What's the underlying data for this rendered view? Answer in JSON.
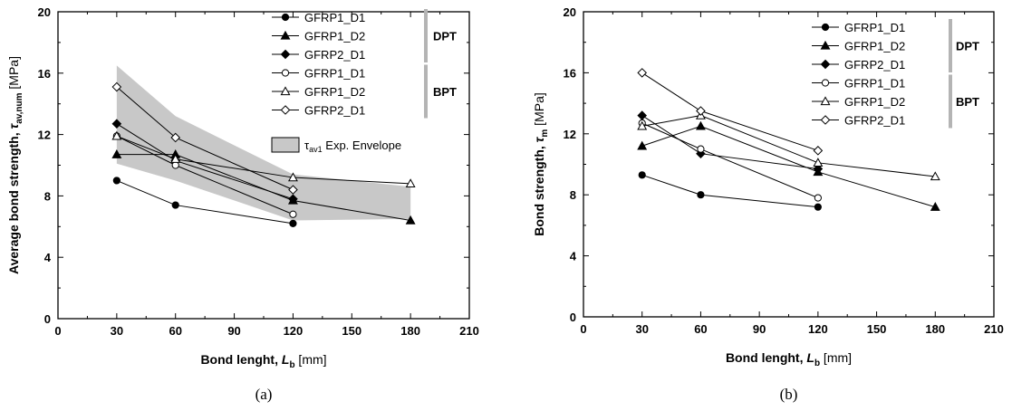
{
  "chart_data": [
    {
      "type": "line",
      "panel_label": "(a)",
      "xlabel": {
        "pre": "Bond lenght, ",
        "sym": "L",
        "sub": "b",
        "post": " [mm]"
      },
      "ylabel": {
        "pre": "Average bond strength, ",
        "sym": "τ",
        "sub": "av,num",
        "post": " [MPa]"
      },
      "xlim": [
        0,
        210
      ],
      "ylim": [
        0,
        20
      ],
      "xticks": [
        0,
        30,
        60,
        90,
        120,
        150,
        180,
        210
      ],
      "yticks": [
        0,
        4,
        8,
        12,
        16,
        20
      ],
      "envelope": {
        "label_sym": "τ",
        "label_sub": "av1",
        "label_post": " Exp. Envelope",
        "color": "#c8c8c8",
        "x": [
          30,
          60,
          120,
          180
        ],
        "upper": [
          16.5,
          13.2,
          9.4,
          8.6
        ],
        "lower": [
          10.1,
          9.0,
          6.4,
          6.5
        ]
      },
      "groups": [
        {
          "label": "DPT",
          "series_from": 0,
          "series_to": 2
        },
        {
          "label": "BPT",
          "series_from": 3,
          "series_to": 5
        }
      ],
      "series": [
        {
          "name": "GFRP1_D1",
          "marker": "circle",
          "filled": true,
          "x": [
            30,
            60,
            120
          ],
          "y": [
            9.0,
            7.4,
            6.2
          ]
        },
        {
          "name": "GFRP1_D2",
          "marker": "triangle",
          "filled": true,
          "x": [
            30,
            60,
            120,
            180
          ],
          "y": [
            10.7,
            10.7,
            7.7,
            6.4
          ]
        },
        {
          "name": "GFRP2_D1",
          "marker": "diamond",
          "filled": true,
          "x": [
            30,
            60,
            120
          ],
          "y": [
            12.7,
            10.3,
            7.8
          ]
        },
        {
          "name": "GFRP1_D1",
          "marker": "circle",
          "filled": false,
          "x": [
            30,
            60,
            120
          ],
          "y": [
            11.9,
            10.0,
            6.8
          ]
        },
        {
          "name": "GFRP1_D2",
          "marker": "triangle",
          "filled": false,
          "x": [
            30,
            60,
            120,
            180
          ],
          "y": [
            11.9,
            10.4,
            9.2,
            8.8
          ]
        },
        {
          "name": "GFRP2_D1",
          "marker": "diamond",
          "filled": false,
          "x": [
            30,
            60,
            120
          ],
          "y": [
            15.1,
            11.8,
            8.4
          ]
        }
      ]
    },
    {
      "type": "line",
      "panel_label": "(b)",
      "xlabel": {
        "pre": "Bond lenght, ",
        "sym": "L",
        "sub": "b",
        "post": " [mm]"
      },
      "ylabel": {
        "pre": "Bond strength, ",
        "sym": "τ",
        "sub": "m",
        "post": " [MPa]"
      },
      "xlim": [
        0,
        210
      ],
      "ylim": [
        0,
        20
      ],
      "xticks": [
        0,
        30,
        60,
        90,
        120,
        150,
        180,
        210
      ],
      "yticks": [
        0,
        4,
        8,
        12,
        16,
        20
      ],
      "groups": [
        {
          "label": "DPT",
          "series_from": 0,
          "series_to": 2
        },
        {
          "label": "BPT",
          "series_from": 3,
          "series_to": 5
        }
      ],
      "series": [
        {
          "name": "GFRP1_D1",
          "marker": "circle",
          "filled": true,
          "x": [
            30,
            60,
            120
          ],
          "y": [
            9.3,
            8.0,
            7.2
          ]
        },
        {
          "name": "GFRP1_D2",
          "marker": "triangle",
          "filled": true,
          "x": [
            30,
            60,
            120,
            180
          ],
          "y": [
            11.2,
            12.5,
            9.5,
            7.2
          ]
        },
        {
          "name": "GFRP2_D1",
          "marker": "diamond",
          "filled": true,
          "x": [
            30,
            60,
            120
          ],
          "y": [
            13.2,
            10.7,
            9.7
          ]
        },
        {
          "name": "GFRP1_D1",
          "marker": "circle",
          "filled": false,
          "x": [
            30,
            60,
            120
          ],
          "y": [
            12.7,
            11.0,
            7.8
          ]
        },
        {
          "name": "GFRP1_D2",
          "marker": "triangle",
          "filled": false,
          "x": [
            30,
            60,
            120,
            180
          ],
          "y": [
            12.5,
            13.2,
            10.1,
            9.2
          ]
        },
        {
          "name": "GFRP2_D1",
          "marker": "diamond",
          "filled": false,
          "x": [
            30,
            60,
            120
          ],
          "y": [
            16.0,
            13.5,
            10.9
          ]
        }
      ]
    }
  ]
}
